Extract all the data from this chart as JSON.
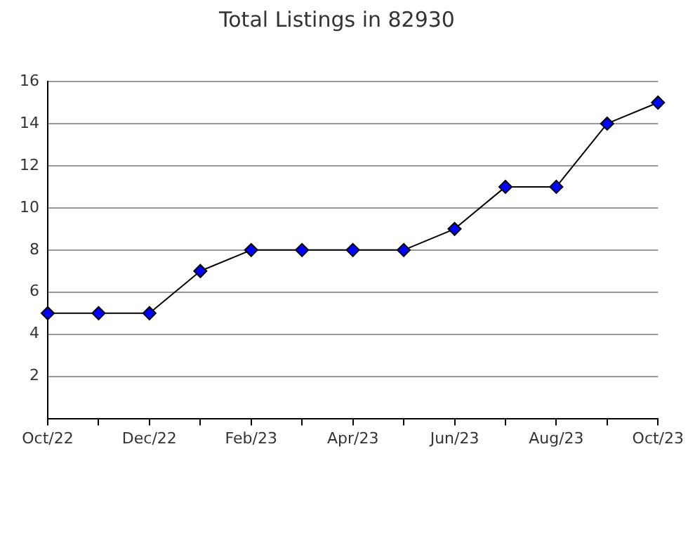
{
  "chart_data": {
    "type": "line",
    "title": "Total Listings in 82930",
    "categories": [
      "Oct/22",
      null,
      "Dec/22",
      null,
      "Feb/23",
      null,
      "Apr/23",
      null,
      "Jun/23",
      null,
      "Aug/23",
      null,
      "Oct/23"
    ],
    "series": [
      {
        "color": "#0000ff",
        "values": [
          5,
          5,
          5,
          7,
          8,
          8,
          8,
          8,
          9,
          11,
          11,
          14,
          15
        ]
      }
    ],
    "ylim": [
      0,
      16
    ],
    "yticks": [
      2,
      4,
      6,
      8,
      10,
      12,
      14,
      16
    ],
    "grid": "y",
    "legend": false,
    "marker": "diamond",
    "line_style": "solid"
  }
}
